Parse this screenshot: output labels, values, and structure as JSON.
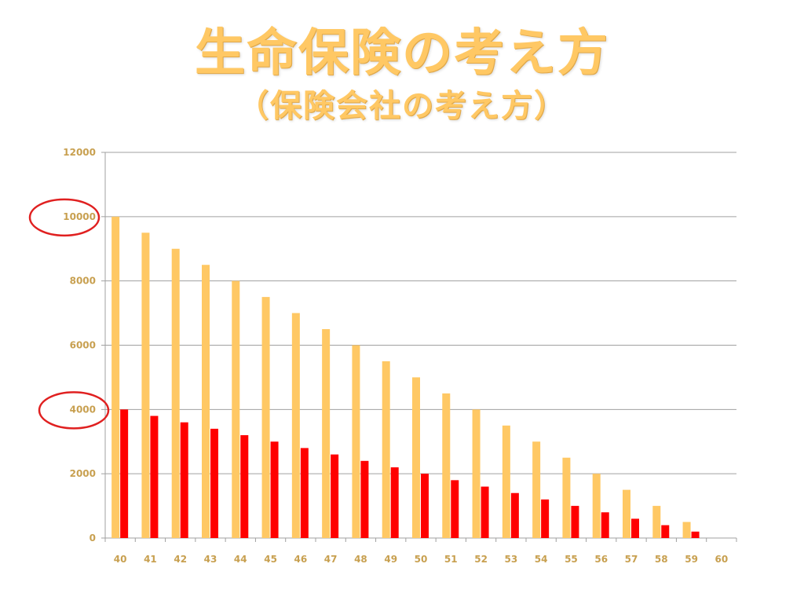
{
  "title": "生命保険の考え方",
  "subtitle": "（保険会社の考え方）",
  "colors": {
    "title": "#ffc864",
    "series_a": "#ffc864",
    "series_b": "#ff0000",
    "grid": "#a0a0a0",
    "highlight_circle": "#e02020",
    "tick_text": "#c8a050"
  },
  "chart_data": {
    "type": "bar",
    "categories": [
      "40",
      "41",
      "42",
      "43",
      "44",
      "45",
      "46",
      "47",
      "48",
      "49",
      "50",
      "51",
      "52",
      "53",
      "54",
      "55",
      "56",
      "57",
      "58",
      "59",
      "60"
    ],
    "series": [
      {
        "values": [
          10000,
          9500,
          9000,
          8500,
          8000,
          7500,
          7000,
          6500,
          6000,
          5500,
          5000,
          4500,
          4000,
          3500,
          3000,
          2500,
          2000,
          1500,
          1000,
          500,
          0
        ],
        "color": "#ffc864"
      },
      {
        "values": [
          4000,
          3800,
          3600,
          3400,
          3200,
          3000,
          2800,
          2600,
          2400,
          2200,
          2000,
          1800,
          1600,
          1400,
          1200,
          1000,
          800,
          600,
          400,
          200,
          0
        ],
        "color": "#ff0000"
      }
    ],
    "yticks": [
      0,
      2000,
      4000,
      6000,
      8000,
      10000,
      12000
    ],
    "ylim": [
      0,
      12000
    ],
    "grid": true,
    "legend": "none",
    "highlighted_ticks": [
      10000,
      4000
    ]
  }
}
